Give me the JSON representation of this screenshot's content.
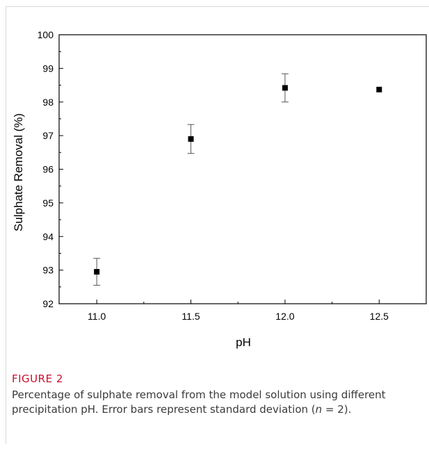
{
  "chart_data": {
    "type": "scatter",
    "xlabel": "pH",
    "ylabel": "Sulphate Removal (%)",
    "xlim": [
      10.8,
      12.75
    ],
    "ylim": [
      92,
      100
    ],
    "xticks": [
      11.0,
      11.5,
      12.0,
      12.5
    ],
    "xtick_labels": [
      "11.0",
      "11.5",
      "12.0",
      "12.5"
    ],
    "yticks": [
      92,
      93,
      94,
      95,
      96,
      97,
      98,
      99,
      100
    ],
    "ytick_labels": [
      "92",
      "93",
      "94",
      "95",
      "96",
      "97",
      "98",
      "99",
      "100"
    ],
    "grid": false,
    "points": [
      {
        "x": 11.0,
        "y": 92.95,
        "err": 0.4
      },
      {
        "x": 11.5,
        "y": 96.9,
        "err": 0.43
      },
      {
        "x": 12.0,
        "y": 98.42,
        "err": 0.42
      },
      {
        "x": 12.5,
        "y": 98.37,
        "err": 0
      }
    ]
  },
  "caption": {
    "label": "FIGURE 2",
    "text_before": "Percentage of sulphate removal from the model solution using different precipitation pH. Error bars represent standard deviation (",
    "n_symbol": "n",
    "text_after": " = 2)."
  }
}
